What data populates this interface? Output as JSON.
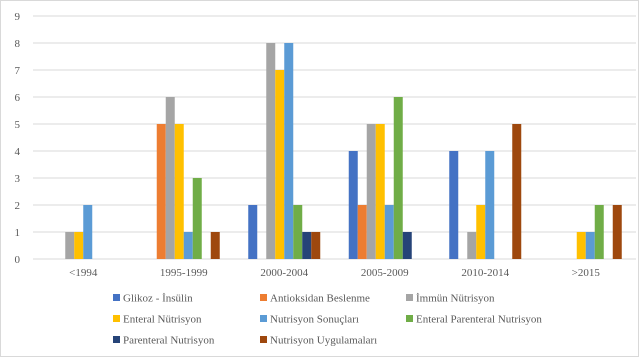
{
  "chart_data": {
    "type": "bar",
    "categories": [
      "<1994",
      "1995-1999",
      "2000-2004",
      "2005-2009",
      "2010-2014",
      ">2015"
    ],
    "ylim": [
      0,
      9
    ],
    "yticks": [
      0,
      1,
      2,
      3,
      4,
      5,
      6,
      7,
      8,
      9
    ],
    "grid": "horizontal",
    "legend_position": "bottom",
    "series": [
      {
        "name": "Glikoz - İnsülin",
        "color": "#4472C4",
        "values": [
          0,
          0,
          2,
          4,
          4,
          0
        ]
      },
      {
        "name": "Antioksidan Beslenme",
        "color": "#ED7D31",
        "values": [
          0,
          5,
          0,
          2,
          0,
          0
        ]
      },
      {
        "name": "İmmün Nütrisyon",
        "color": "#A5A5A5",
        "values": [
          1,
          6,
          8,
          5,
          1,
          0
        ]
      },
      {
        "name": "Enteral Nütrisyon",
        "color": "#FFC000",
        "values": [
          1,
          5,
          7,
          5,
          2,
          1
        ]
      },
      {
        "name": "Nutrisyon Sonuçları",
        "color": "#5B9BD5",
        "values": [
          2,
          1,
          8,
          2,
          4,
          1
        ]
      },
      {
        "name": "Enteral Parenteral Nutrisyon",
        "color": "#70AD47",
        "values": [
          0,
          3,
          2,
          6,
          0,
          2
        ]
      },
      {
        "name": "Parenteral Nutrisyon",
        "color": "#264478",
        "values": [
          0,
          0,
          1,
          1,
          0,
          0
        ]
      },
      {
        "name": "Nutrisyon Uygulamaları",
        "color": "#9E480E",
        "values": [
          0,
          1,
          1,
          0,
          5,
          2
        ]
      }
    ]
  }
}
